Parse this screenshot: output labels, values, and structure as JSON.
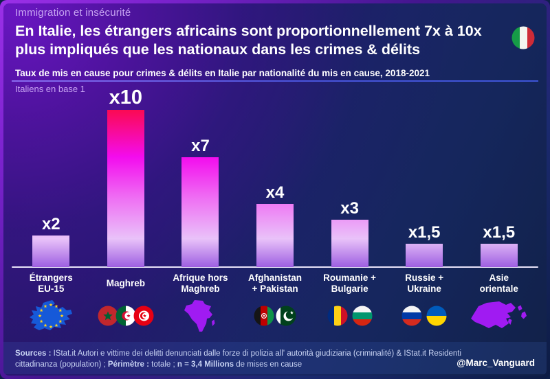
{
  "header": {
    "kicker": "Immigration et insécurité",
    "title_lines": {
      "0": "En Italie, les étrangers africains sont proportionnellement 7x à 10x",
      "1": "plus impliqués que les nationaux dans les crimes & délits"
    },
    "flag_icon": "italy-flag-icon",
    "subtitle": "Taux de mis en cause pour crimes & délits en Italie par nationalité du mis en cause, 2018-2021"
  },
  "chart_data": {
    "type": "bar",
    "title": "Taux de mis en cause pour crimes & délits en Italie par nationalité du mis en cause, 2018-2021",
    "note": "Italiens en base 1",
    "ylim": [
      0,
      10
    ],
    "grid": false,
    "legend": "none",
    "categories": [
      "Étrangers EU-15",
      "Maghreb",
      "Afrique hors Maghreb",
      "Afghanistan + Pakistan",
      "Roumanie + Bulgarie",
      "Russie + Ukraine",
      "Asie orientale"
    ],
    "values": [
      2,
      10,
      7,
      4,
      3,
      1.5,
      1.5
    ],
    "value_labels": [
      "x2",
      "x10",
      "x7",
      "x4",
      "x3",
      "x1,5",
      "x1,5"
    ],
    "points": [
      {
        "label_lines": [
          "Étrangers",
          "EU-15"
        ],
        "value": 2,
        "value_label": "x2",
        "icon": "eu-map-icon"
      },
      {
        "label_lines": [
          "Maghreb"
        ],
        "value": 10,
        "value_label": "x10",
        "icon": "maghreb-flags-icon"
      },
      {
        "label_lines": [
          "Afrique hors",
          "Maghreb"
        ],
        "value": 7,
        "value_label": "x7",
        "icon": "africa-map-icon"
      },
      {
        "label_lines": [
          "Afghanistan",
          "+ Pakistan"
        ],
        "value": 4,
        "value_label": "x4",
        "icon": "afghanistan-pakistan-flags-icon"
      },
      {
        "label_lines": [
          "Roumanie +",
          "Bulgarie"
        ],
        "value": 3,
        "value_label": "x3",
        "icon": "romania-bulgaria-flags-icon"
      },
      {
        "label_lines": [
          "Russie +",
          "Ukraine"
        ],
        "value": 1.5,
        "value_label": "x1,5",
        "icon": "russia-ukraine-flags-icon"
      },
      {
        "label_lines": [
          "Asie",
          "orientale"
        ],
        "value": 1.5,
        "value_label": "x1,5",
        "icon": "east-asia-map-icon"
      }
    ],
    "bar_gradient": [
      "#FB0A52",
      "#F30CEE",
      "#EF6BF3",
      "#E9C2F9",
      "#9D5FE1"
    ]
  },
  "footer": {
    "segments": [
      {
        "text": "Sources : ",
        "bold": true
      },
      {
        "text": "IStat.it Autori e vittime dei delitti denunciati dalle forze di polizia all' autorità giudiziaria (criminalité) & IStat.it Residenti cittadinanza (population) ; ",
        "bold": false
      },
      {
        "text": "Périmètre : ",
        "bold": true
      },
      {
        "text": "totale ; ",
        "bold": false
      },
      {
        "text": "n = 3,4 Millions",
        "bold": true
      },
      {
        "text": " de mises en cause",
        "bold": false
      }
    ],
    "credit": "@Marc_Vanguard"
  },
  "colors": {
    "frame_purple": "#9B30E8",
    "background_navy": "#15265C",
    "accent_lavender": "#C7A4F2",
    "baseline": "#E9E4FA",
    "map_purple": "#A01BF2",
    "eu_blue": "#1659D8",
    "eu_star_yellow": "#FFD21E"
  }
}
